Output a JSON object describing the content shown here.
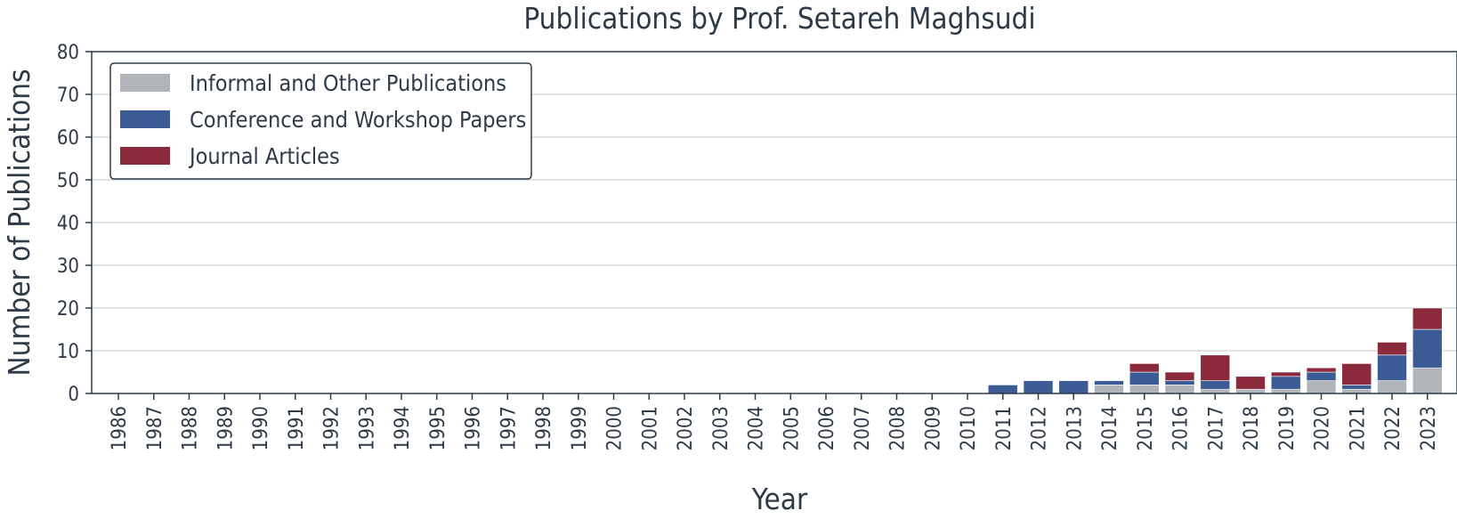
{
  "chart_data": {
    "type": "bar",
    "stacked": true,
    "title": "Publications by Prof. Setareh Maghsudi",
    "xlabel": "Year",
    "ylabel": "Number of Publications",
    "ylim": [
      0,
      80
    ],
    "yticks": [
      0,
      10,
      20,
      30,
      40,
      50,
      60,
      70,
      80
    ],
    "grid": true,
    "legend_position": "top-left",
    "categories": [
      "1986",
      "1987",
      "1988",
      "1989",
      "1990",
      "1991",
      "1992",
      "1993",
      "1994",
      "1995",
      "1996",
      "1997",
      "1998",
      "1999",
      "2000",
      "2001",
      "2002",
      "2003",
      "2004",
      "2005",
      "2006",
      "2007",
      "2008",
      "2009",
      "2010",
      "2011",
      "2012",
      "2013",
      "2014",
      "2015",
      "2016",
      "2017",
      "2018",
      "2019",
      "2020",
      "2021",
      "2022",
      "2023"
    ],
    "series": [
      {
        "name": "Informal and Other Publications",
        "color": "#b0b3b8",
        "values": [
          0,
          0,
          0,
          0,
          0,
          0,
          0,
          0,
          0,
          0,
          0,
          0,
          0,
          0,
          0,
          0,
          0,
          0,
          0,
          0,
          0,
          0,
          0,
          0,
          0,
          0,
          0,
          0,
          2,
          2,
          2,
          1,
          1,
          1,
          3,
          1,
          3,
          6
        ]
      },
      {
        "name": "Conference and Workshop Papers",
        "color": "#3b5b94",
        "values": [
          0,
          0,
          0,
          0,
          0,
          0,
          0,
          0,
          0,
          0,
          0,
          0,
          0,
          0,
          0,
          0,
          0,
          0,
          0,
          0,
          0,
          0,
          0,
          0,
          0,
          2,
          3,
          3,
          1,
          3,
          1,
          2,
          0,
          3,
          2,
          1,
          6,
          9
        ]
      },
      {
        "name": "Journal Articles",
        "color": "#8b2a3a",
        "values": [
          0,
          0,
          0,
          0,
          0,
          0,
          0,
          0,
          0,
          0,
          0,
          0,
          0,
          0,
          0,
          0,
          0,
          0,
          0,
          0,
          0,
          0,
          0,
          0,
          0,
          0,
          0,
          0,
          0,
          2,
          2,
          6,
          3,
          1,
          1,
          5,
          3,
          5
        ]
      }
    ]
  }
}
